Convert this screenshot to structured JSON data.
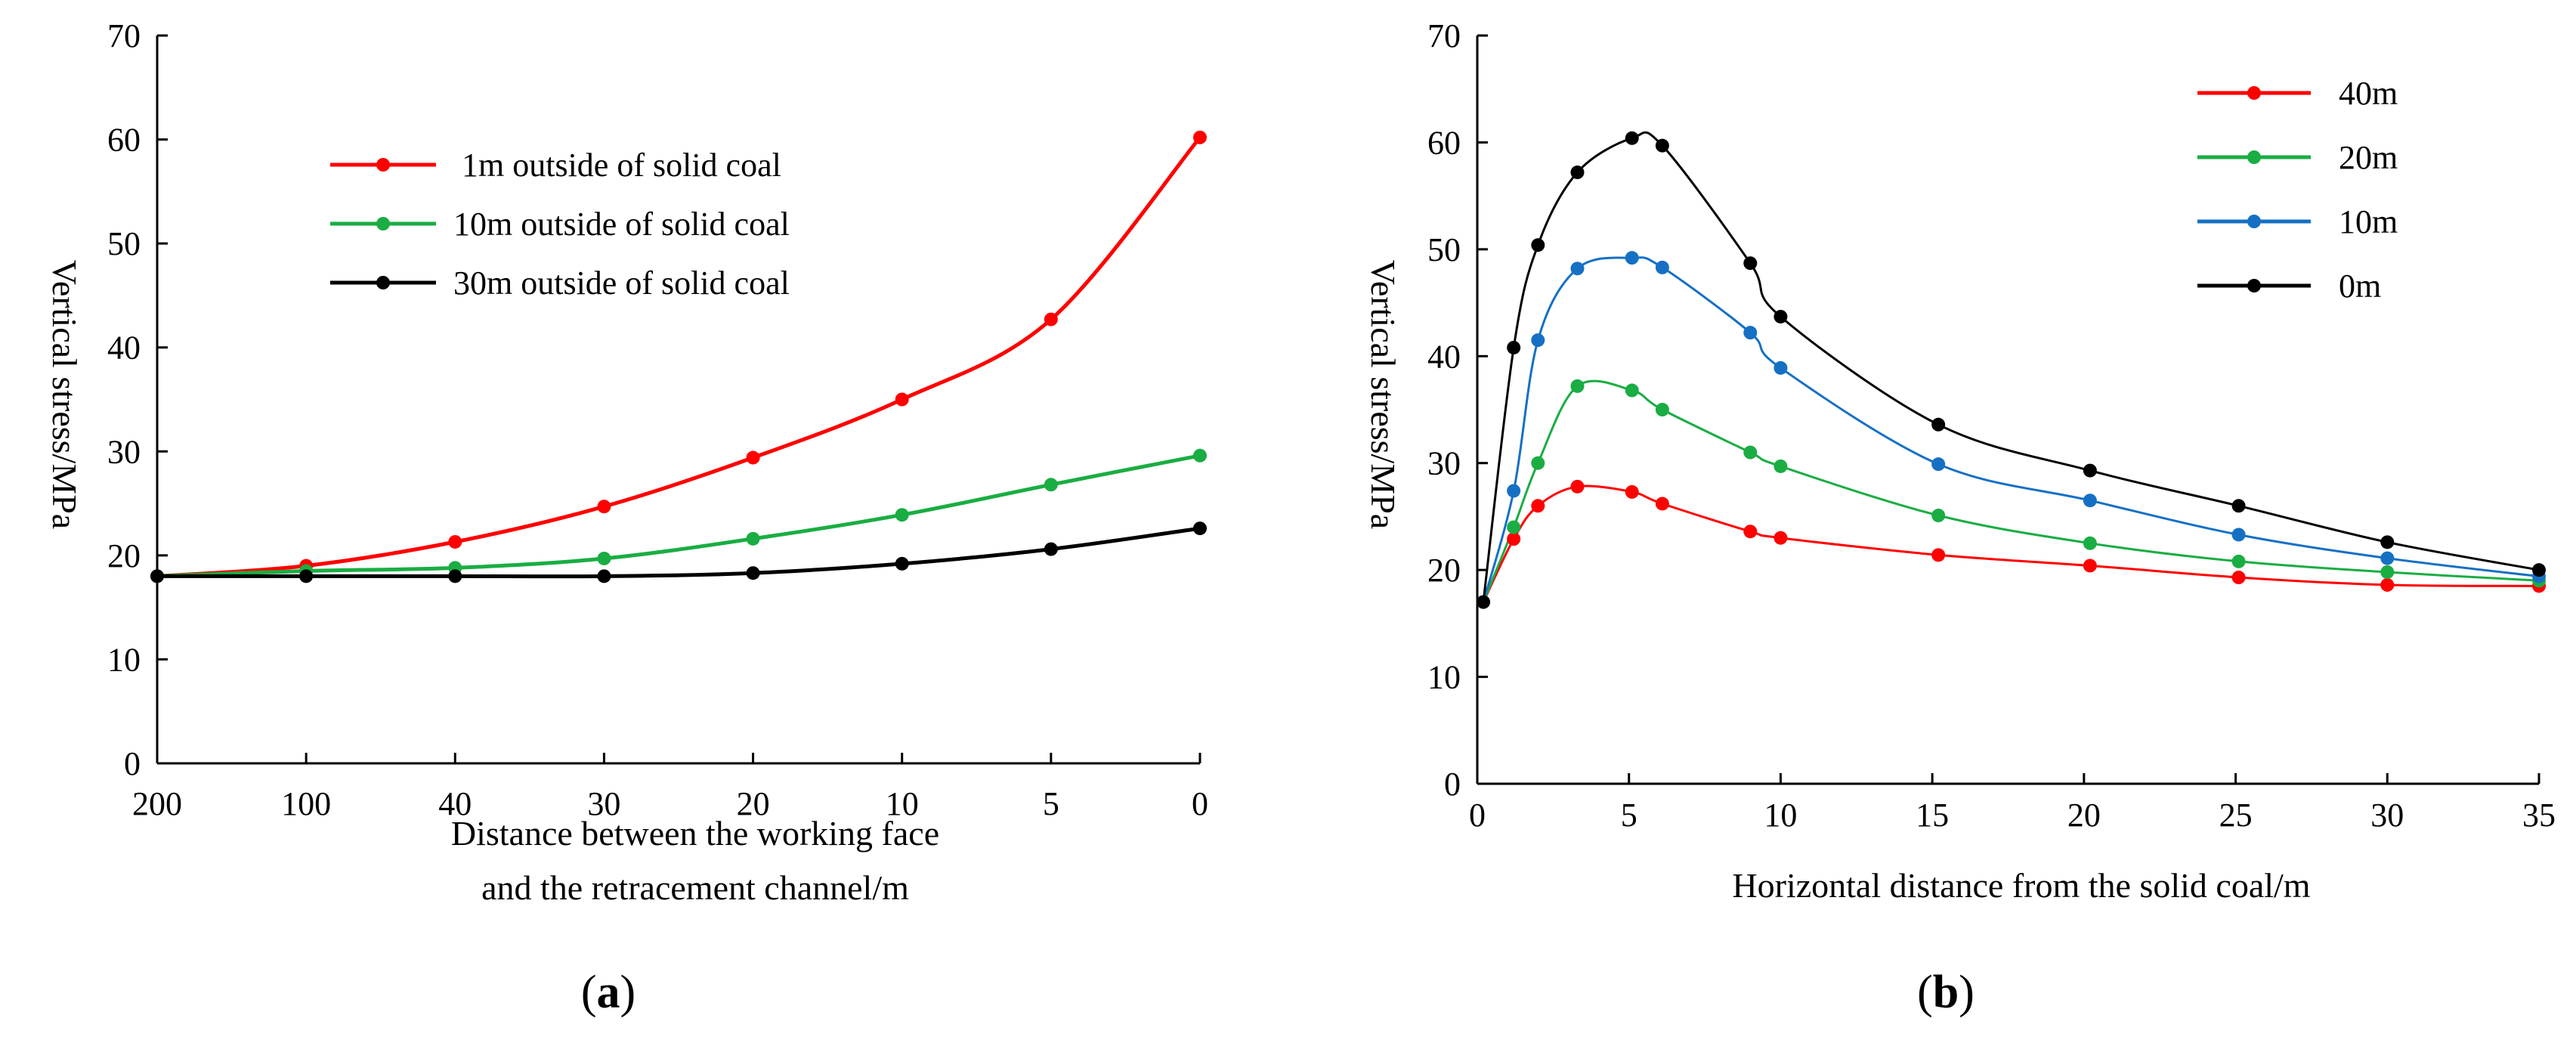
{
  "colors": {
    "red": "#ff0000",
    "green": "#1aad43",
    "blue": "#1570c4",
    "black": "#000000"
  },
  "chart_data": [
    {
      "id": "a",
      "type": "line",
      "panel_label": {
        "open": "(",
        "letter": "a",
        "close": ")"
      },
      "categories": [
        "200",
        "100",
        "40",
        "30",
        "20",
        "10",
        "5",
        "0"
      ],
      "xlabel_lines": [
        "Distance between the working face",
        "and the retracement channel/m"
      ],
      "ylabel": "Vertical stress/MPa",
      "ylim": [
        0,
        70
      ],
      "yticks": [
        0,
        10,
        20,
        30,
        40,
        50,
        60,
        70
      ],
      "legend_position": "top-center",
      "series": [
        {
          "name": " 1m outside of solid coal",
          "color": "#ff0000",
          "values": [
            18,
            19,
            21.3,
            24.7,
            29.4,
            35,
            42.7,
            60.2
          ]
        },
        {
          "name": "10m outside of solid coal",
          "color": "#1aad43",
          "values": [
            18,
            18.5,
            18.8,
            19.7,
            21.6,
            23.9,
            26.8,
            29.6
          ]
        },
        {
          "name": "30m outside of solid coal",
          "color": "#000000",
          "values": [
            18,
            18,
            18,
            18,
            18.3,
            19.2,
            20.6,
            22.6
          ]
        }
      ]
    },
    {
      "id": "b",
      "type": "line",
      "panel_label": {
        "open": "(",
        "letter": "b",
        "close": ")"
      },
      "xlabel": "Horizontal distance from the solid coal/m",
      "ylabel": "Vertical stress/MPa",
      "xlim": [
        0,
        35
      ],
      "xticks": [
        0,
        5,
        10,
        15,
        20,
        25,
        30,
        35
      ],
      "ylim": [
        0,
        70
      ],
      "yticks": [
        0,
        10,
        20,
        30,
        40,
        50,
        60,
        70
      ],
      "legend_position": "top-right",
      "series": [
        {
          "name": "40m",
          "color": "#ff0000",
          "x": [
            0.2,
            1.2,
            2,
            3.3,
            5.1,
            6.1,
            9,
            10,
            15.2,
            20.2,
            25.1,
            30,
            35
          ],
          "values": [
            17,
            22.9,
            26,
            27.8,
            27.3,
            26.2,
            23.6,
            23,
            21.4,
            20.4,
            19.3,
            18.6,
            18.5
          ]
        },
        {
          "name": "20m",
          "color": "#1aad43",
          "x": [
            0.2,
            1.2,
            2,
            3.3,
            5.1,
            6.1,
            9,
            10,
            15.2,
            20.2,
            25.1,
            30,
            35
          ],
          "values": [
            17,
            24,
            30,
            37.2,
            36.8,
            35,
            31,
            29.7,
            25.1,
            22.5,
            20.8,
            19.8,
            19
          ]
        },
        {
          "name": "10m",
          "color": "#1570c4",
          "x": [
            0.2,
            1.2,
            2,
            3.3,
            5.1,
            6.1,
            9,
            10,
            15.2,
            20.2,
            25.1,
            30,
            35
          ],
          "values": [
            17,
            27.4,
            41.5,
            48.2,
            49.2,
            48.3,
            42.2,
            38.9,
            29.9,
            26.5,
            23.3,
            21.1,
            19.4
          ]
        },
        {
          "name": "0m",
          "color": "#000000",
          "x": [
            0.2,
            1.2,
            2,
            3.3,
            5.1,
            6.1,
            9,
            10,
            15.2,
            20.2,
            25.1,
            30,
            35
          ],
          "values": [
            17,
            40.8,
            50.4,
            57.2,
            60.4,
            59.7,
            48.7,
            43.7,
            33.6,
            29.3,
            26,
            22.6,
            20
          ]
        }
      ]
    }
  ]
}
